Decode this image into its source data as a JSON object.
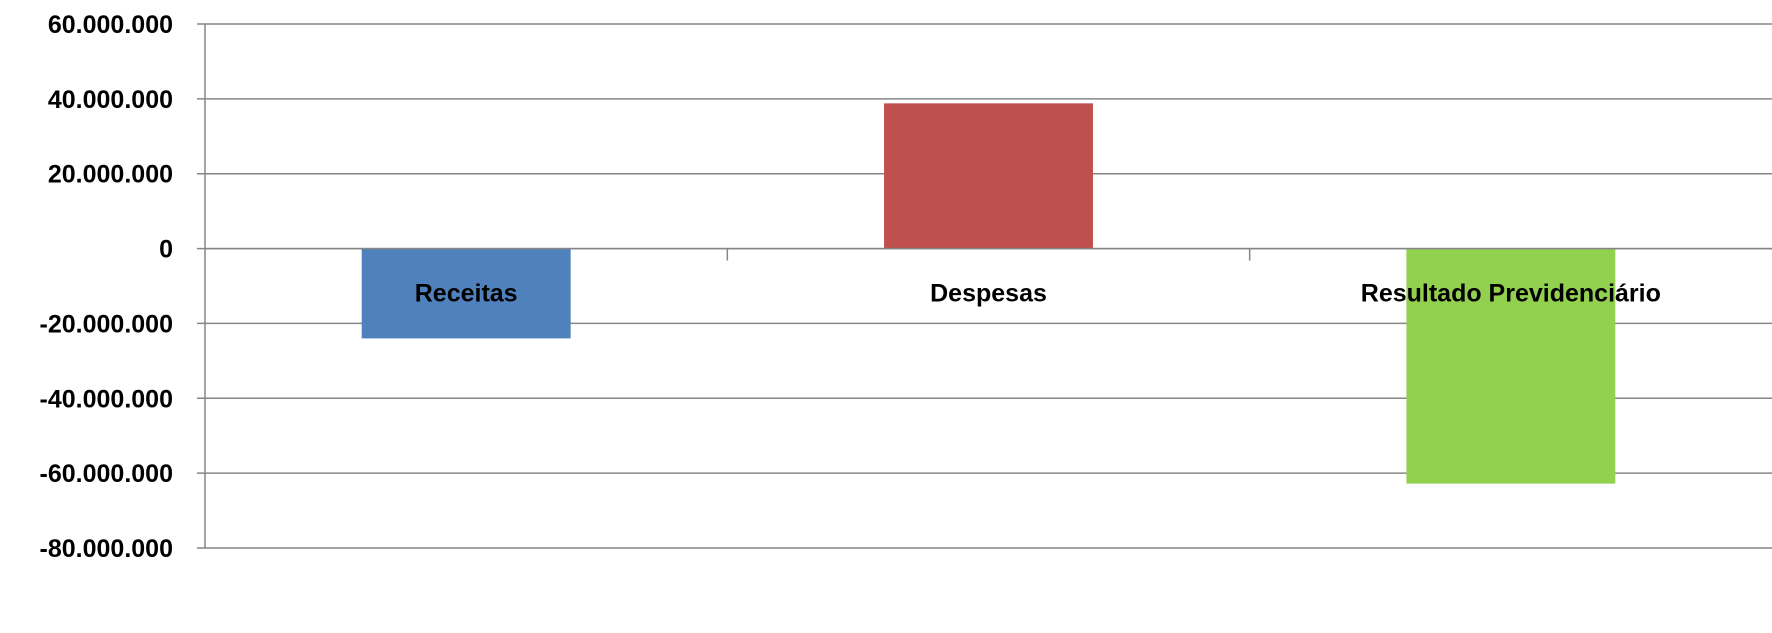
{
  "chart_data": {
    "type": "bar",
    "categories": [
      "Receitas",
      "Despesas",
      "Resultado Previdenciário"
    ],
    "values": [
      -24000000,
      38800000,
      -62800000
    ],
    "colors": [
      "#4f81bd",
      "#c0504d",
      "#92d050"
    ],
    "ylim": [
      -80000000,
      60000000
    ],
    "yticks": [
      60000000,
      40000000,
      20000000,
      0,
      -20000000,
      -40000000,
      -60000000,
      -80000000
    ],
    "ytick_labels": [
      "60.000.000",
      "40.000.000",
      "20.000.000",
      "0",
      "-20.000.000",
      "-40.000.000",
      "-60.000.000",
      "-80.000.000"
    ],
    "grid": true,
    "title": "",
    "xlabel": "",
    "ylabel": ""
  }
}
